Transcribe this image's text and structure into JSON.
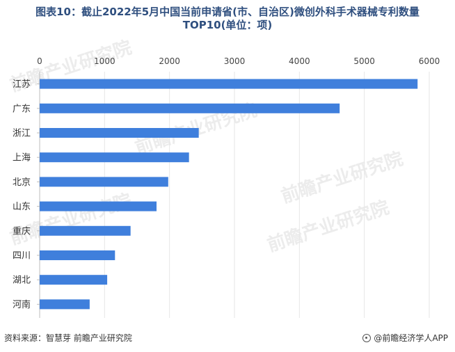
{
  "title_line1": "图表10：截止2022年5月中国当前申请省(市、自治区)微创外科手术器械专利数量",
  "title_line2": "TOP10(单位：项)",
  "source": "资料来源：智慧芽 前瞻产业研究院",
  "brand": "@前瞻经济学人APP",
  "watermark": "前瞻产业研究院",
  "colors": {
    "bar": "#3f7fdc",
    "grid": "#e6e6e6"
  },
  "chart_data": {
    "type": "bar",
    "orientation": "horizontal",
    "categories": [
      "江苏",
      "广东",
      "浙江",
      "上海",
      "北京",
      "山东",
      "重庆",
      "四川",
      "湖北",
      "河南"
    ],
    "values": [
      5820,
      4620,
      2450,
      2300,
      1980,
      1800,
      1400,
      1160,
      1040,
      770
    ],
    "xlim": [
      0,
      6000
    ],
    "xticks": [
      0,
      1000,
      2000,
      3000,
      4000,
      5000,
      6000
    ],
    "grid": true
  }
}
